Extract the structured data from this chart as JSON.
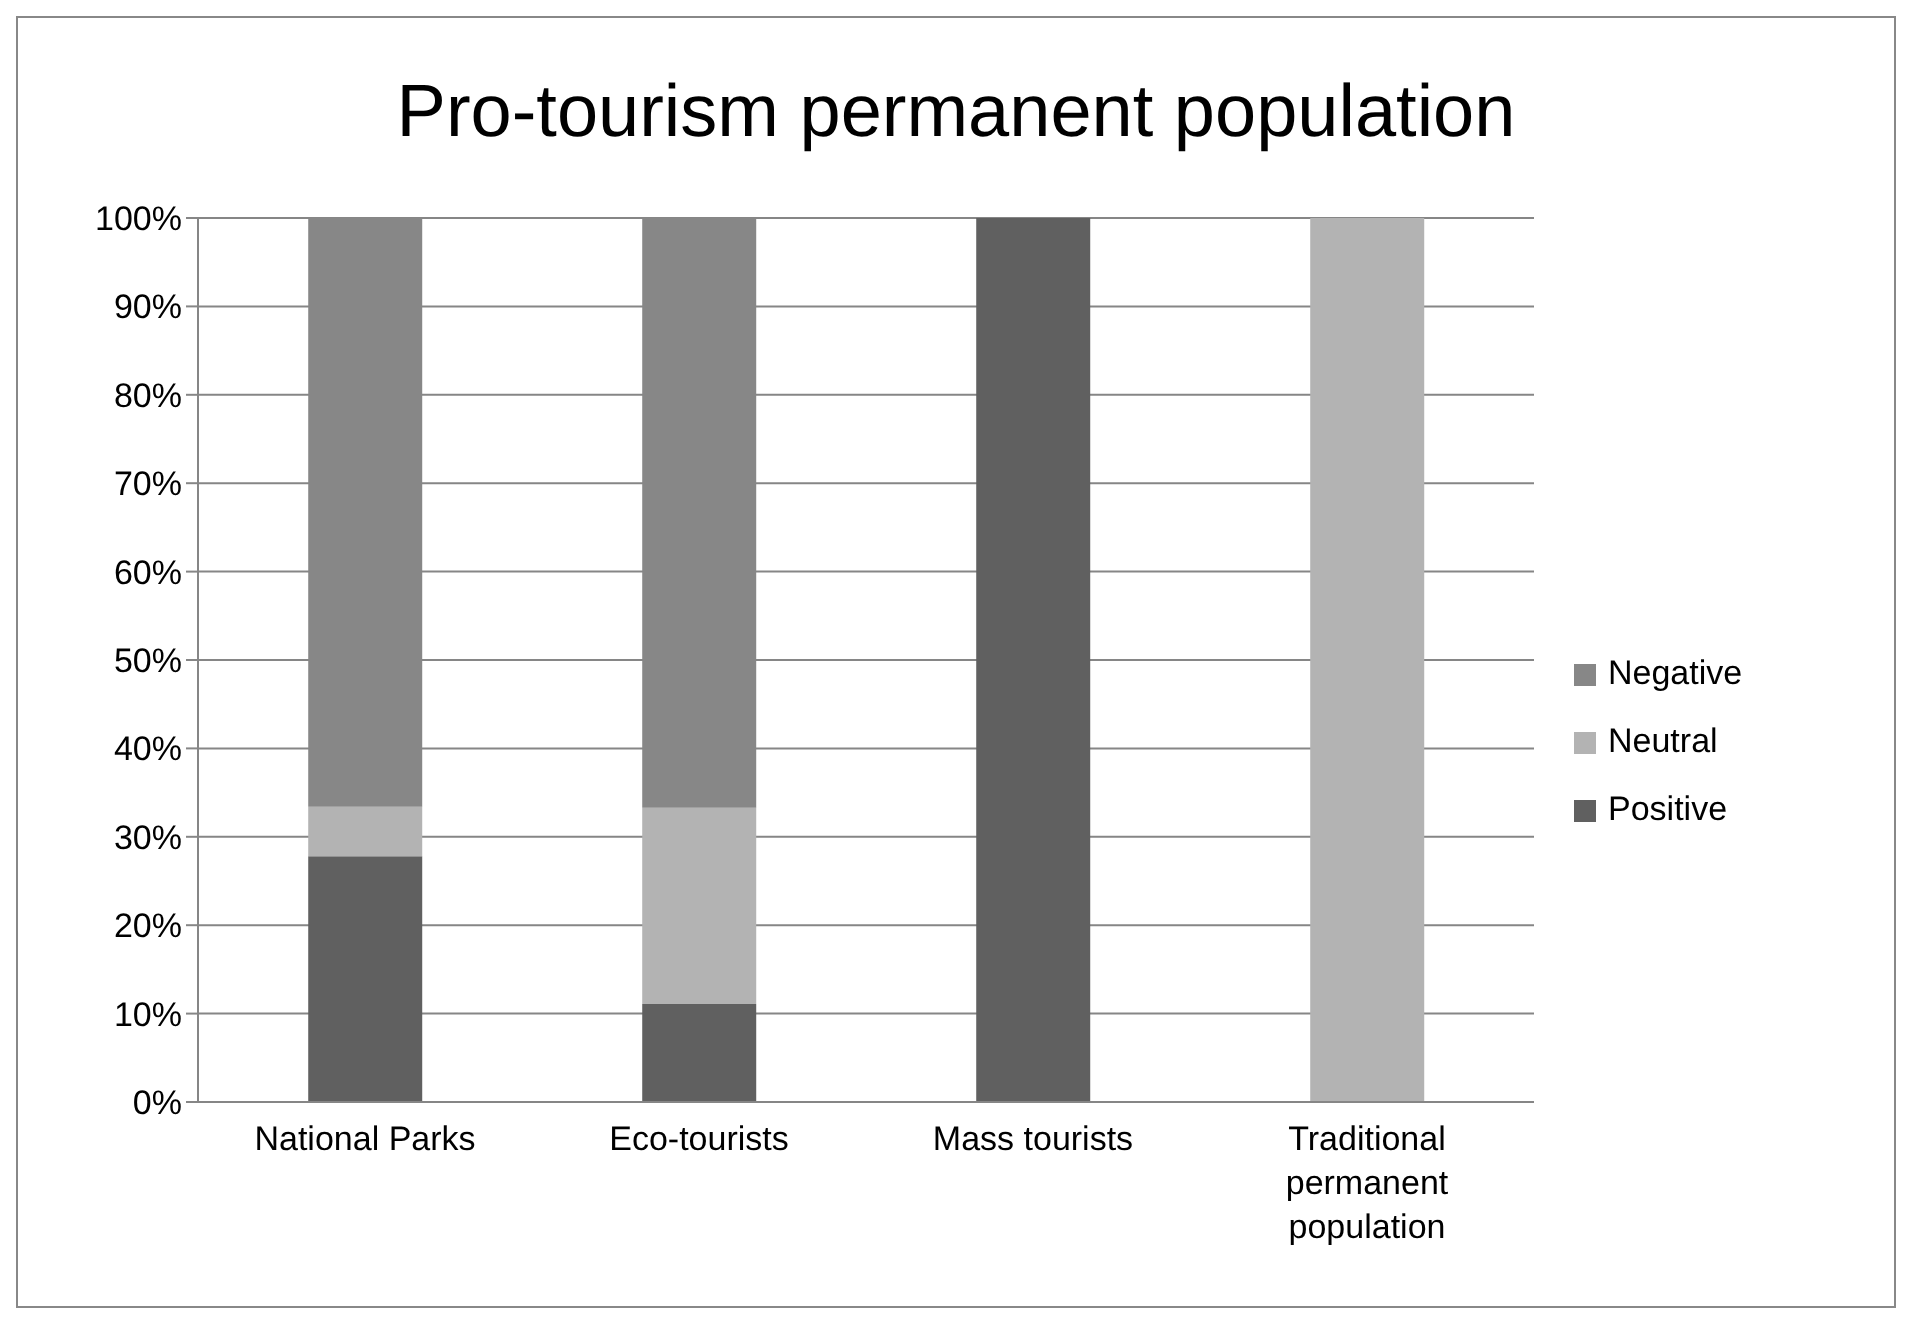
{
  "chart_data": {
    "type": "bar",
    "title": "Pro-tourism permanent population",
    "categories": [
      "National Parks",
      "Eco-tourists",
      "Mass tourists",
      "Traditional permanent population"
    ],
    "stacked": true,
    "series": [
      {
        "name": "Positive",
        "color": "#606060",
        "values": [
          27.8,
          11.1,
          100,
          0
        ]
      },
      {
        "name": "Neutral",
        "color": "#b3b3b3",
        "values": [
          5.6,
          22.2,
          0,
          100
        ]
      },
      {
        "name": "Negative",
        "color": "#878787",
        "values": [
          66.7,
          66.7,
          0,
          0
        ]
      }
    ],
    "ylim": [
      0,
      100
    ],
    "yticks": [
      {
        "value": 0,
        "label": "0%"
      },
      {
        "value": 10,
        "label": "10%"
      },
      {
        "value": 20,
        "label": "20%"
      },
      {
        "value": 30,
        "label": "30%"
      },
      {
        "value": 40,
        "label": "40%"
      },
      {
        "value": 50,
        "label": "50%"
      },
      {
        "value": 60,
        "label": "60%"
      },
      {
        "value": 70,
        "label": "70%"
      },
      {
        "value": 80,
        "label": "80%"
      },
      {
        "value": 90,
        "label": "90%"
      },
      {
        "value": 100,
        "label": "100%"
      }
    ],
    "grid": "y",
    "legend": "right"
  }
}
